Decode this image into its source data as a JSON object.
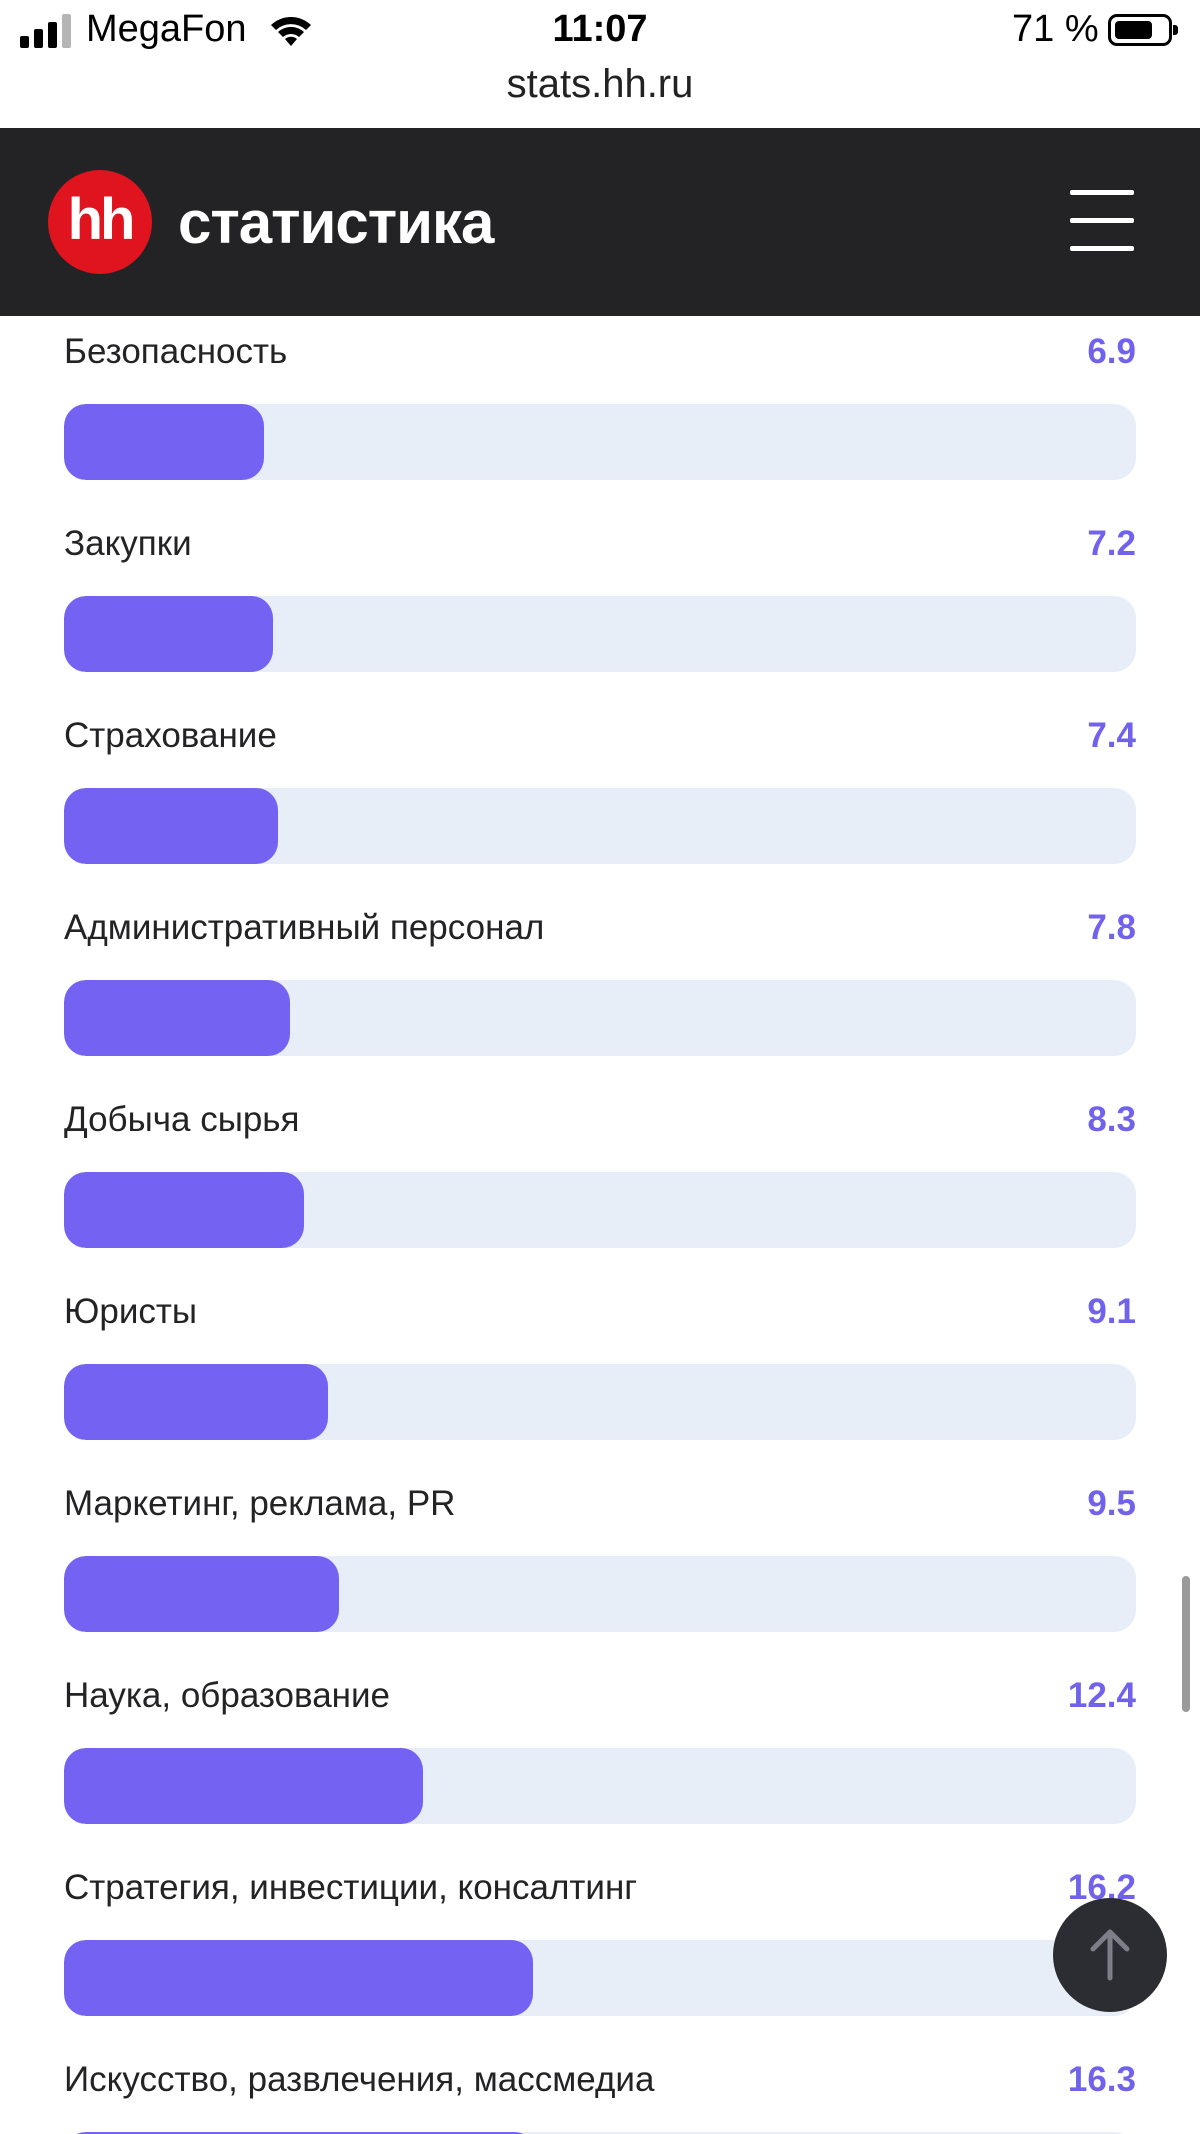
{
  "status_bar": {
    "carrier": "MegaFon",
    "time": "11:07",
    "battery": "71 %",
    "battery_level": 0.71,
    "url": "stats.hh.ru"
  },
  "header": {
    "logo_mark": "hh",
    "logo_text": "статистика",
    "menu_icon": "hamburger-menu-icon"
  },
  "colors": {
    "header_bg": "#232325",
    "logo_red": "#e0141e",
    "accent": "#7462f2",
    "track": "#e7eef7"
  },
  "scale_max": 37,
  "rows": [
    {
      "label": "Безопасность",
      "value": "6.9"
    },
    {
      "label": "Закупки",
      "value": "7.2"
    },
    {
      "label": "Страхование",
      "value": "7.4"
    },
    {
      "label": "Административный персонал",
      "value": "7.8"
    },
    {
      "label": "Добыча сырья",
      "value": "8.3"
    },
    {
      "label": "Юристы",
      "value": "9.1"
    },
    {
      "label": "Маркетинг, реклама, PR",
      "value": "9.5"
    },
    {
      "label": "Наука, образование",
      "value": "12.4"
    },
    {
      "label": "Стратегия, инвестиции, консалтинг",
      "value": "16.2"
    },
    {
      "label": "Искусство, развлечения, массмедиа",
      "value": "16.3"
    }
  ],
  "scroll_top_icon": "arrow-up-icon"
}
